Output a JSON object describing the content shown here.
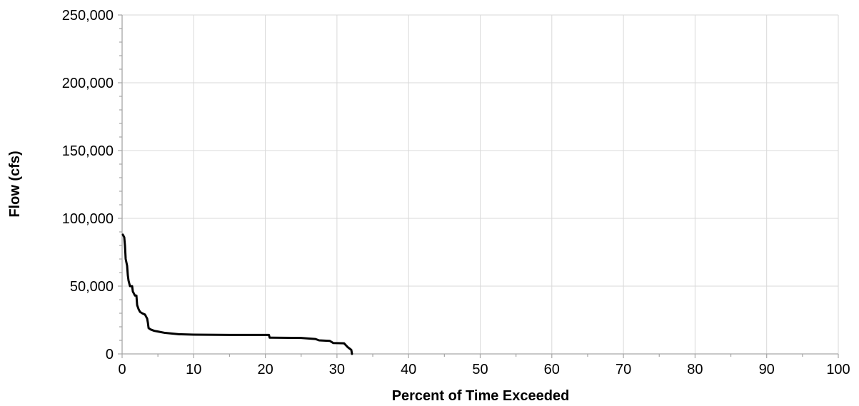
{
  "chart_data": {
    "type": "line",
    "title": "",
    "xlabel": "Percent of Time Exceeded",
    "ylabel": "Flow (cfs)",
    "xlim": [
      0,
      100
    ],
    "ylim": [
      0,
      250000
    ],
    "x_ticks": [
      0,
      10,
      20,
      30,
      40,
      50,
      60,
      70,
      80,
      90,
      100
    ],
    "y_ticks": [
      0,
      50000,
      100000,
      150000,
      200000,
      250000
    ],
    "x_tick_labels": [
      "0",
      "10",
      "20",
      "30",
      "40",
      "50",
      "60",
      "70",
      "80",
      "90",
      "100"
    ],
    "y_tick_labels": [
      "0",
      "50,000",
      "100,000",
      "150,000",
      "200,000",
      "250,000"
    ],
    "x_minor_step": 5,
    "y_minor_step": 10000,
    "grid": true,
    "legend": "none",
    "series": [
      {
        "color": "#000000",
        "points": [
          [
            0.1,
            88000
          ],
          [
            0.3,
            86000
          ],
          [
            0.4,
            80000
          ],
          [
            0.5,
            70000
          ],
          [
            0.7,
            65000
          ],
          [
            0.8,
            58000
          ],
          [
            0.9,
            54000
          ],
          [
            1.1,
            50000
          ],
          [
            1.4,
            50000
          ],
          [
            1.5,
            46000
          ],
          [
            1.8,
            43000
          ],
          [
            2.0,
            43000
          ],
          [
            2.1,
            36000
          ],
          [
            2.3,
            33000
          ],
          [
            2.5,
            31000
          ],
          [
            2.8,
            30000
          ],
          [
            3.2,
            29000
          ],
          [
            3.5,
            26000
          ],
          [
            3.6,
            23000
          ],
          [
            3.7,
            19000
          ],
          [
            4.0,
            18000
          ],
          [
            4.5,
            17000
          ],
          [
            5.0,
            16500
          ],
          [
            5.5,
            16000
          ],
          [
            6.0,
            15500
          ],
          [
            7.0,
            15000
          ],
          [
            8.0,
            14500
          ],
          [
            10.0,
            14200
          ],
          [
            15.0,
            14000
          ],
          [
            20.5,
            14000
          ],
          [
            20.6,
            12000
          ],
          [
            25.0,
            11800
          ],
          [
            27.0,
            11000
          ],
          [
            27.5,
            10000
          ],
          [
            29.0,
            9600
          ],
          [
            29.5,
            8000
          ],
          [
            31.0,
            7800
          ],
          [
            31.5,
            5000
          ],
          [
            32.0,
            3000
          ],
          [
            32.1,
            0
          ]
        ]
      }
    ]
  }
}
